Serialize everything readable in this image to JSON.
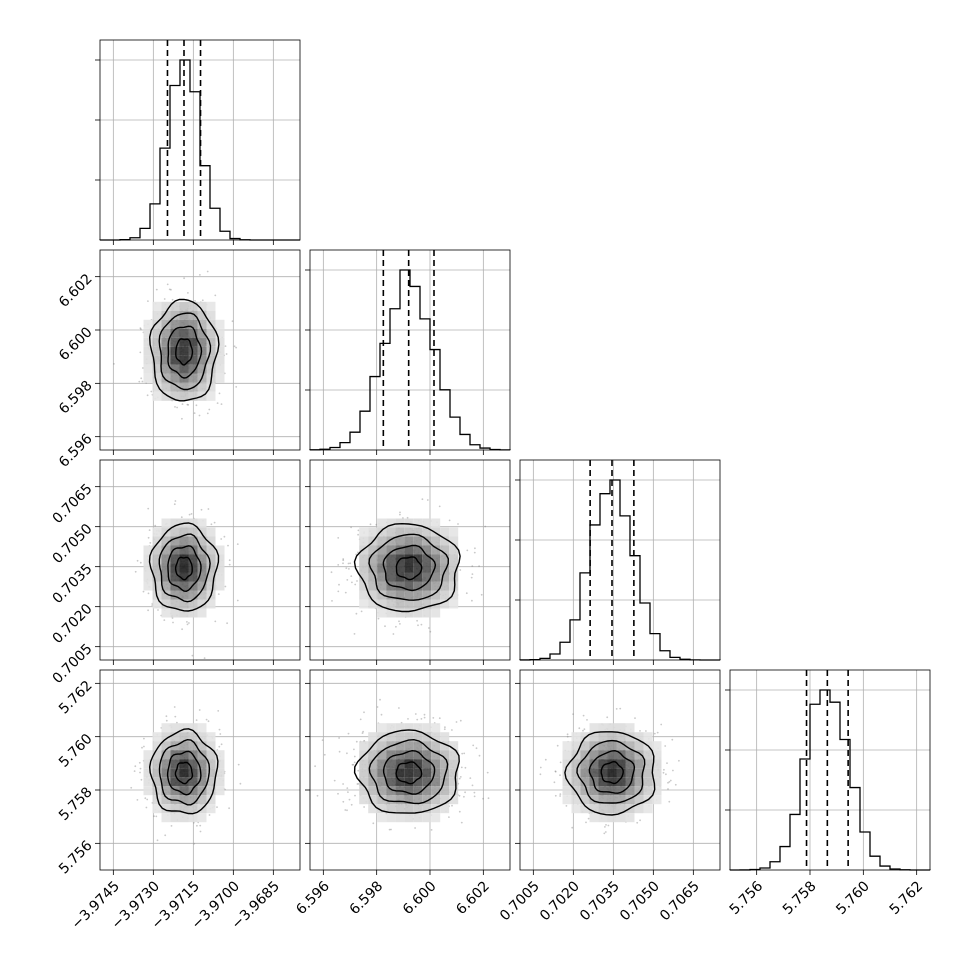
{
  "chart_data": {
    "type": "corner",
    "parameters": [
      {
        "center": -3.97185,
        "sigma": 0.00062,
        "q16": -3.97247,
        "q50": -3.97185,
        "q84": -3.97123,
        "range": [
          -3.975,
          -3.9675
        ],
        "ticks": [
          -3.9745,
          -3.973,
          -3.9715,
          -3.97,
          -3.9685
        ],
        "tick_labels": [
          "−3.9745",
          "−3.9730",
          "−3.9715",
          "−3.9700",
          "−3.9685"
        ]
      },
      {
        "center": 6.5992,
        "sigma": 0.00095,
        "q16": 6.59825,
        "q50": 6.5992,
        "q84": 6.60015,
        "range": [
          6.5955,
          6.603
        ],
        "ticks": [
          6.596,
          6.598,
          6.6,
          6.602
        ],
        "tick_labels": [
          "6.596",
          "6.598",
          "6.600",
          "6.602"
        ]
      },
      {
        "center": 0.70345,
        "sigma": 0.00082,
        "q16": 0.70263,
        "q50": 0.70345,
        "q84": 0.70427,
        "range": [
          0.7,
          0.7075
        ],
        "ticks": [
          0.7005,
          0.702,
          0.7035,
          0.705,
          0.7065
        ],
        "tick_labels": [
          "0.7005",
          "0.7020",
          "0.7035",
          "0.7050",
          "0.7065"
        ]
      },
      {
        "center": 5.75865,
        "sigma": 0.00078,
        "q16": 5.75787,
        "q50": 5.75865,
        "q84": 5.75943,
        "range": [
          5.755,
          5.7625
        ],
        "ticks": [
          5.756,
          5.758,
          5.76,
          5.762
        ],
        "tick_labels": [
          "5.756",
          "5.758",
          "5.760",
          "5.762"
        ]
      }
    ],
    "histogram_style": "step",
    "quantiles": [
      0.16,
      0.5,
      0.84
    ],
    "contour_levels_sigma": [
      0.5,
      1.0,
      1.5,
      2.0
    ],
    "grid": true,
    "colors": {
      "line": "#000000",
      "grid": "#b0b0b0",
      "points": "#888888"
    }
  }
}
